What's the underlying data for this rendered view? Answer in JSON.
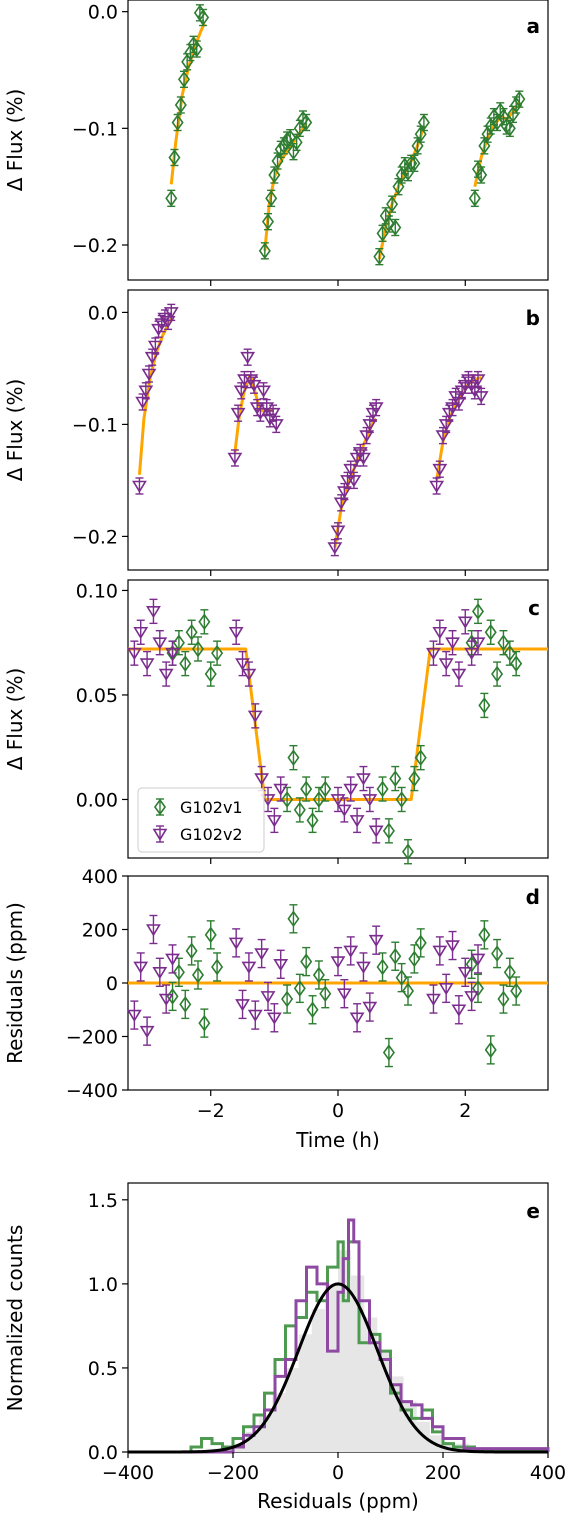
{
  "chart_data": [
    {
      "panel_label": "a",
      "type": "scatter",
      "ylabel": "Δ Flux (%)",
      "xlim": [
        -3.3,
        3.3
      ],
      "ylim": [
        -0.23,
        0.01
      ],
      "xticks": [
        -2,
        0,
        2
      ],
      "yticks": [
        0.0,
        -0.1,
        -0.2
      ],
      "ytick_labels": [
        "0.0",
        "−0.1",
        "−0.2"
      ],
      "series": [
        {
          "role": "data",
          "x": [
            -2.62,
            -2.57,
            -2.52,
            -2.47,
            -2.42,
            -2.37,
            -2.32,
            -2.27,
            -2.22,
            -2.17,
            -2.12
          ],
          "y": [
            -0.16,
            -0.125,
            -0.095,
            -0.08,
            -0.058,
            -0.043,
            -0.035,
            -0.028,
            -0.032,
            -0.001,
            -0.005
          ]
        },
        {
          "role": "data",
          "x": [
            -1.15,
            -1.1,
            -1.05,
            -1.0,
            -0.95,
            -0.9,
            -0.85,
            -0.8,
            -0.75,
            -0.7,
            -0.65,
            -0.6,
            -0.55,
            -0.5
          ],
          "y": [
            -0.205,
            -0.18,
            -0.16,
            -0.14,
            -0.128,
            -0.118,
            -0.115,
            -0.11,
            -0.108,
            -0.12,
            -0.112,
            -0.1,
            -0.092,
            -0.095
          ]
        },
        {
          "role": "data",
          "x": [
            0.65,
            0.7,
            0.75,
            0.8,
            0.85,
            0.9,
            0.95,
            1.0,
            1.05,
            1.1,
            1.15,
            1.2,
            1.25,
            1.3,
            1.35
          ],
          "y": [
            -0.21,
            -0.19,
            -0.175,
            -0.182,
            -0.165,
            -0.185,
            -0.15,
            -0.14,
            -0.132,
            -0.138,
            -0.13,
            -0.13,
            -0.115,
            -0.105,
            -0.095
          ]
        },
        {
          "role": "data",
          "x": [
            2.15,
            2.2,
            2.25,
            2.3,
            2.35,
            2.4,
            2.45,
            2.5,
            2.55,
            2.6,
            2.65,
            2.7,
            2.75,
            2.8,
            2.85
          ],
          "y": [
            -0.16,
            -0.135,
            -0.14,
            -0.115,
            -0.105,
            -0.098,
            -0.09,
            -0.095,
            -0.085,
            -0.09,
            -0.098,
            -0.1,
            -0.088,
            -0.08,
            -0.075
          ]
        }
      ],
      "model_segments": [
        {
          "x": [
            -2.62,
            -2.55,
            -2.45,
            -2.35,
            -2.25,
            -2.15,
            -2.1
          ],
          "y": [
            -0.148,
            -0.112,
            -0.072,
            -0.048,
            -0.03,
            -0.016,
            -0.01
          ]
        },
        {
          "x": [
            -1.15,
            -1.08,
            -1.0,
            -0.9,
            -0.8,
            -0.7,
            -0.6,
            -0.5
          ],
          "y": [
            -0.205,
            -0.165,
            -0.142,
            -0.128,
            -0.12,
            -0.112,
            -0.104,
            -0.096
          ]
        },
        {
          "x": [
            0.65,
            0.75,
            0.85,
            0.95,
            1.05,
            1.15,
            1.25,
            1.35
          ],
          "y": [
            -0.212,
            -0.185,
            -0.165,
            -0.15,
            -0.138,
            -0.128,
            -0.115,
            -0.098
          ]
        },
        {
          "x": [
            2.15,
            2.25,
            2.35,
            2.45,
            2.55,
            2.65,
            2.75,
            2.85
          ],
          "y": [
            -0.15,
            -0.125,
            -0.108,
            -0.098,
            -0.09,
            -0.092,
            -0.086,
            -0.078
          ]
        }
      ],
      "colors": {
        "data": "#2e7d32",
        "model": "#ffa500"
      }
    },
    {
      "panel_label": "b",
      "type": "scatter",
      "ylabel": "Δ Flux (%)",
      "xlim": [
        -3.3,
        3.3
      ],
      "ylim": [
        -0.23,
        0.02
      ],
      "xticks": [
        -2,
        0,
        2
      ],
      "yticks": [
        0.0,
        -0.1,
        -0.2
      ],
      "ytick_labels": [
        "0.0",
        "−0.1",
        "−0.2"
      ],
      "series": [
        {
          "role": "data",
          "x": [
            -3.12,
            -3.07,
            -3.02,
            -2.97,
            -2.92,
            -2.87,
            -2.82,
            -2.77,
            -2.72,
            -2.67,
            -2.62
          ],
          "y": [
            -0.155,
            -0.08,
            -0.07,
            -0.055,
            -0.04,
            -0.03,
            -0.015,
            -0.01,
            -0.005,
            -0.008,
            0.0
          ]
        },
        {
          "role": "data",
          "x": [
            -1.62,
            -1.57,
            -1.52,
            -1.47,
            -1.42,
            -1.37,
            -1.32,
            -1.27,
            -1.22,
            -1.17,
            -1.12,
            -1.07,
            -1.02,
            -0.97
          ],
          "y": [
            -0.13,
            -0.09,
            -0.07,
            -0.06,
            -0.04,
            -0.06,
            -0.065,
            -0.085,
            -0.09,
            -0.07,
            -0.085,
            -0.095,
            -0.09,
            -0.1
          ]
        },
        {
          "role": "data",
          "x": [
            -0.05,
            0.0,
            0.05,
            0.1,
            0.15,
            0.2,
            0.25,
            0.3,
            0.35,
            0.4,
            0.45,
            0.5,
            0.55,
            0.6
          ],
          "y": [
            -0.21,
            -0.195,
            -0.17,
            -0.16,
            -0.15,
            -0.14,
            -0.15,
            -0.13,
            -0.125,
            -0.13,
            -0.11,
            -0.1,
            -0.09,
            -0.085
          ]
        },
        {
          "role": "data",
          "x": [
            1.55,
            1.6,
            1.65,
            1.7,
            1.75,
            1.8,
            1.85,
            1.9,
            1.95,
            2.0,
            2.05,
            2.1,
            2.15,
            2.2,
            2.25
          ],
          "y": [
            -0.155,
            -0.14,
            -0.11,
            -0.1,
            -0.09,
            -0.085,
            -0.075,
            -0.08,
            -0.07,
            -0.065,
            -0.06,
            -0.065,
            -0.07,
            -0.06,
            -0.075
          ]
        }
      ],
      "model_segments": [
        {
          "x": [
            -3.12,
            -3.05,
            -2.95,
            -2.85,
            -2.75,
            -2.62
          ],
          "y": [
            -0.145,
            -0.095,
            -0.058,
            -0.035,
            -0.02,
            -0.005
          ]
        },
        {
          "x": [
            -1.62,
            -1.55,
            -1.48,
            -1.4,
            -1.35,
            -1.3,
            -1.25,
            -1.2,
            -1.1,
            -1.02
          ],
          "y": [
            -0.125,
            -0.092,
            -0.072,
            -0.058,
            -0.06,
            -0.072,
            -0.082,
            -0.088,
            -0.087,
            -0.088
          ]
        },
        {
          "x": [
            -0.05,
            0.05,
            0.15,
            0.25,
            0.35,
            0.45,
            0.55,
            0.6
          ],
          "y": [
            -0.21,
            -0.175,
            -0.155,
            -0.14,
            -0.125,
            -0.112,
            -0.098,
            -0.095
          ]
        },
        {
          "x": [
            1.55,
            1.65,
            1.75,
            1.85,
            1.95,
            2.05,
            2.15,
            2.25
          ],
          "y": [
            -0.15,
            -0.115,
            -0.095,
            -0.082,
            -0.072,
            -0.064,
            -0.06,
            -0.058
          ]
        }
      ],
      "colors": {
        "data": "#7b2d8e",
        "model": "#ffa500"
      }
    },
    {
      "panel_label": "c",
      "type": "scatter",
      "ylabel": "Δ Flux (%)",
      "xlim": [
        -3.3,
        3.3
      ],
      "ylim": [
        -0.028,
        0.105
      ],
      "xticks": [
        -2,
        0,
        2
      ],
      "yticks": [
        0.1,
        0.05,
        0.0
      ],
      "ytick_labels": [
        "0.10",
        "0.05",
        "0.00"
      ],
      "legend": {
        "position": "lower-left",
        "entries": [
          "G102v1",
          "G102v2"
        ]
      },
      "series": [
        {
          "name": "G102v1",
          "x": [
            -2.6,
            -2.5,
            -2.4,
            -2.3,
            -2.2,
            -2.1,
            -2.0,
            -1.9,
            -0.8,
            -0.7,
            -0.6,
            -0.5,
            -0.4,
            -0.3,
            -0.2,
            0.7,
            0.8,
            0.9,
            1.0,
            1.1,
            1.2,
            1.3,
            2.1,
            2.2,
            2.3,
            2.4,
            2.5,
            2.6,
            2.7,
            2.8
          ],
          "y": [
            0.07,
            0.075,
            0.065,
            0.08,
            0.072,
            0.085,
            0.06,
            0.07,
            0.0,
            0.02,
            -0.005,
            0.005,
            -0.01,
            0.0,
            0.005,
            0.005,
            -0.015,
            0.01,
            0.0,
            -0.025,
            0.01,
            0.02,
            0.075,
            0.09,
            0.045,
            0.08,
            0.06,
            0.075,
            0.07,
            0.065
          ]
        },
        {
          "name": "G102v2",
          "x": [
            -3.2,
            -3.1,
            -3.0,
            -2.9,
            -2.8,
            -2.7,
            -2.6,
            -1.6,
            -1.5,
            -1.4,
            -1.3,
            -1.2,
            -1.1,
            -1.0,
            -0.9,
            0.0,
            0.1,
            0.2,
            0.3,
            0.4,
            0.5,
            0.6,
            1.5,
            1.6,
            1.7,
            1.8,
            1.9,
            2.0,
            2.1,
            2.2
          ],
          "y": [
            0.07,
            0.08,
            0.065,
            0.09,
            0.075,
            0.06,
            0.07,
            0.08,
            0.065,
            0.06,
            0.04,
            0.01,
            0.0,
            -0.01,
            0.005,
            0.0,
            -0.005,
            0.005,
            -0.01,
            0.01,
            0.0,
            -0.015,
            0.07,
            0.08,
            0.065,
            0.075,
            0.06,
            0.085,
            0.07,
            0.075
          ]
        }
      ],
      "model": {
        "x": [
          -3.3,
          -1.45,
          -1.3,
          -1.15,
          1.15,
          1.3,
          1.45,
          3.3
        ],
        "y": [
          0.072,
          0.072,
          0.036,
          0.0,
          0.0,
          0.036,
          0.072,
          0.072
        ]
      },
      "colors": {
        "G102v1": "#2e7d32",
        "G102v2": "#7b2d8e",
        "model": "#ffa500"
      }
    },
    {
      "panel_label": "d",
      "type": "scatter",
      "ylabel": "Residuals (ppm)",
      "xlabel": "Time (h)",
      "xlim": [
        -3.3,
        3.3
      ],
      "ylim": [
        -400,
        400
      ],
      "xticks": [
        -2,
        0,
        2
      ],
      "xtick_labels": [
        "−2",
        "0",
        "2"
      ],
      "yticks": [
        400,
        200,
        0,
        -200,
        -400
      ],
      "ytick_labels": [
        "400",
        "200",
        "0",
        "−200",
        "−400"
      ],
      "series": [
        {
          "name": "G102v1",
          "x": [
            -2.6,
            -2.5,
            -2.4,
            -2.3,
            -2.2,
            -2.1,
            -2.0,
            -1.9,
            -0.8,
            -0.7,
            -0.6,
            -0.5,
            -0.4,
            -0.3,
            -0.2,
            0.7,
            0.8,
            0.9,
            1.0,
            1.1,
            1.2,
            1.3,
            2.1,
            2.2,
            2.3,
            2.4,
            2.5,
            2.6,
            2.7,
            2.8
          ],
          "y": [
            -50,
            40,
            -80,
            120,
            30,
            -150,
            180,
            60,
            -60,
            240,
            -20,
            80,
            -100,
            30,
            -40,
            60,
            -260,
            100,
            20,
            -30,
            90,
            150,
            70,
            -20,
            180,
            -250,
            110,
            -60,
            40,
            -30
          ]
        },
        {
          "name": "G102v2",
          "x": [
            -3.2,
            -3.1,
            -3.0,
            -2.9,
            -2.8,
            -2.7,
            -2.6,
            -1.6,
            -1.5,
            -1.4,
            -1.3,
            -1.2,
            -1.1,
            -1.0,
            -0.9,
            0.0,
            0.1,
            0.2,
            0.3,
            0.4,
            0.5,
            0.6,
            1.5,
            1.6,
            1.7,
            1.8,
            1.9,
            2.0,
            2.1,
            2.2
          ],
          "y": [
            -120,
            60,
            -180,
            200,
            40,
            -60,
            90,
            150,
            -80,
            60,
            -120,
            110,
            -50,
            -130,
            70,
            80,
            -40,
            120,
            -130,
            60,
            -90,
            160,
            -60,
            120,
            -20,
            140,
            -100,
            40,
            -50,
            90
          ]
        }
      ],
      "model": {
        "x": [
          -3.3,
          3.3
        ],
        "y": [
          0,
          0
        ]
      },
      "colors": {
        "G102v1": "#2e7d32",
        "G102v2": "#7b2d8e",
        "model": "#ffa500"
      }
    },
    {
      "panel_label": "e",
      "type": "line",
      "ylabel": "Normalized counts",
      "xlabel": "Residuals (ppm)",
      "xlim": [
        -400,
        400
      ],
      "ylim": [
        0,
        1.6
      ],
      "xticks": [
        -400,
        -200,
        0,
        200,
        400
      ],
      "xtick_labels": [
        "−400",
        "−200",
        "0",
        "200",
        "400"
      ],
      "yticks": [
        0.0,
        0.5,
        1.0,
        1.5
      ],
      "ytick_labels": [
        "0.0",
        "0.5",
        "1.0",
        "1.5"
      ],
      "series": [
        {
          "role": "histogram-filled",
          "x": [
            -400,
            -350,
            -300,
            -250,
            -200,
            -175,
            -150,
            -125,
            -100,
            -75,
            -50,
            -25,
            0,
            25,
            50,
            75,
            100,
            125,
            150,
            175,
            200,
            250,
            300,
            400
          ],
          "y": [
            0,
            0,
            0.01,
            0.02,
            0.05,
            0.12,
            0.22,
            0.35,
            0.5,
            0.7,
            0.85,
            1.0,
            1.2,
            1.05,
            0.8,
            0.6,
            0.45,
            0.3,
            0.18,
            0.1,
            0.05,
            0.02,
            0.01,
            0
          ]
        },
        {
          "role": "histogram-green",
          "x": [
            -400,
            -320,
            -280,
            -260,
            -240,
            -220,
            -200,
            -180,
            -160,
            -140,
            -120,
            -100,
            -80,
            -60,
            -40,
            -20,
            0,
            10,
            20,
            40,
            60,
            80,
            100,
            120,
            140,
            160,
            180,
            200,
            220,
            260,
            400
          ],
          "y": [
            0,
            0,
            0.03,
            0.08,
            0.05,
            0.03,
            0.08,
            0.15,
            0.22,
            0.35,
            0.55,
            0.75,
            0.8,
            0.95,
            0.9,
            1.1,
            1.25,
            0.9,
            1.25,
            0.65,
            0.7,
            0.6,
            0.35,
            0.25,
            0.2,
            0.25,
            0.12,
            0.05,
            0.03,
            0.01,
            0
          ]
        },
        {
          "role": "histogram-purple",
          "x": [
            -400,
            -300,
            -200,
            -180,
            -160,
            -140,
            -120,
            -100,
            -80,
            -60,
            -40,
            -20,
            0,
            10,
            20,
            30,
            40,
            60,
            80,
            100,
            120,
            140,
            160,
            180,
            200,
            240,
            400
          ],
          "y": [
            0,
            0,
            0.03,
            0.1,
            0.15,
            0.25,
            0.45,
            0.55,
            0.9,
            1.1,
            1.0,
            0.6,
            0.95,
            1.15,
            1.38,
            1.25,
            0.9,
            0.65,
            0.55,
            0.4,
            0.3,
            0.28,
            0.2,
            0.15,
            0.08,
            0.02,
            0
          ]
        },
        {
          "role": "gaussian",
          "mu": 0,
          "sigma": 75,
          "amplitude": 1.0
        }
      ],
      "colors": {
        "filled": "#e6e6e6",
        "green": "#4e9a51",
        "purple": "#8e4aa3",
        "gaussian": "#000000"
      }
    }
  ]
}
